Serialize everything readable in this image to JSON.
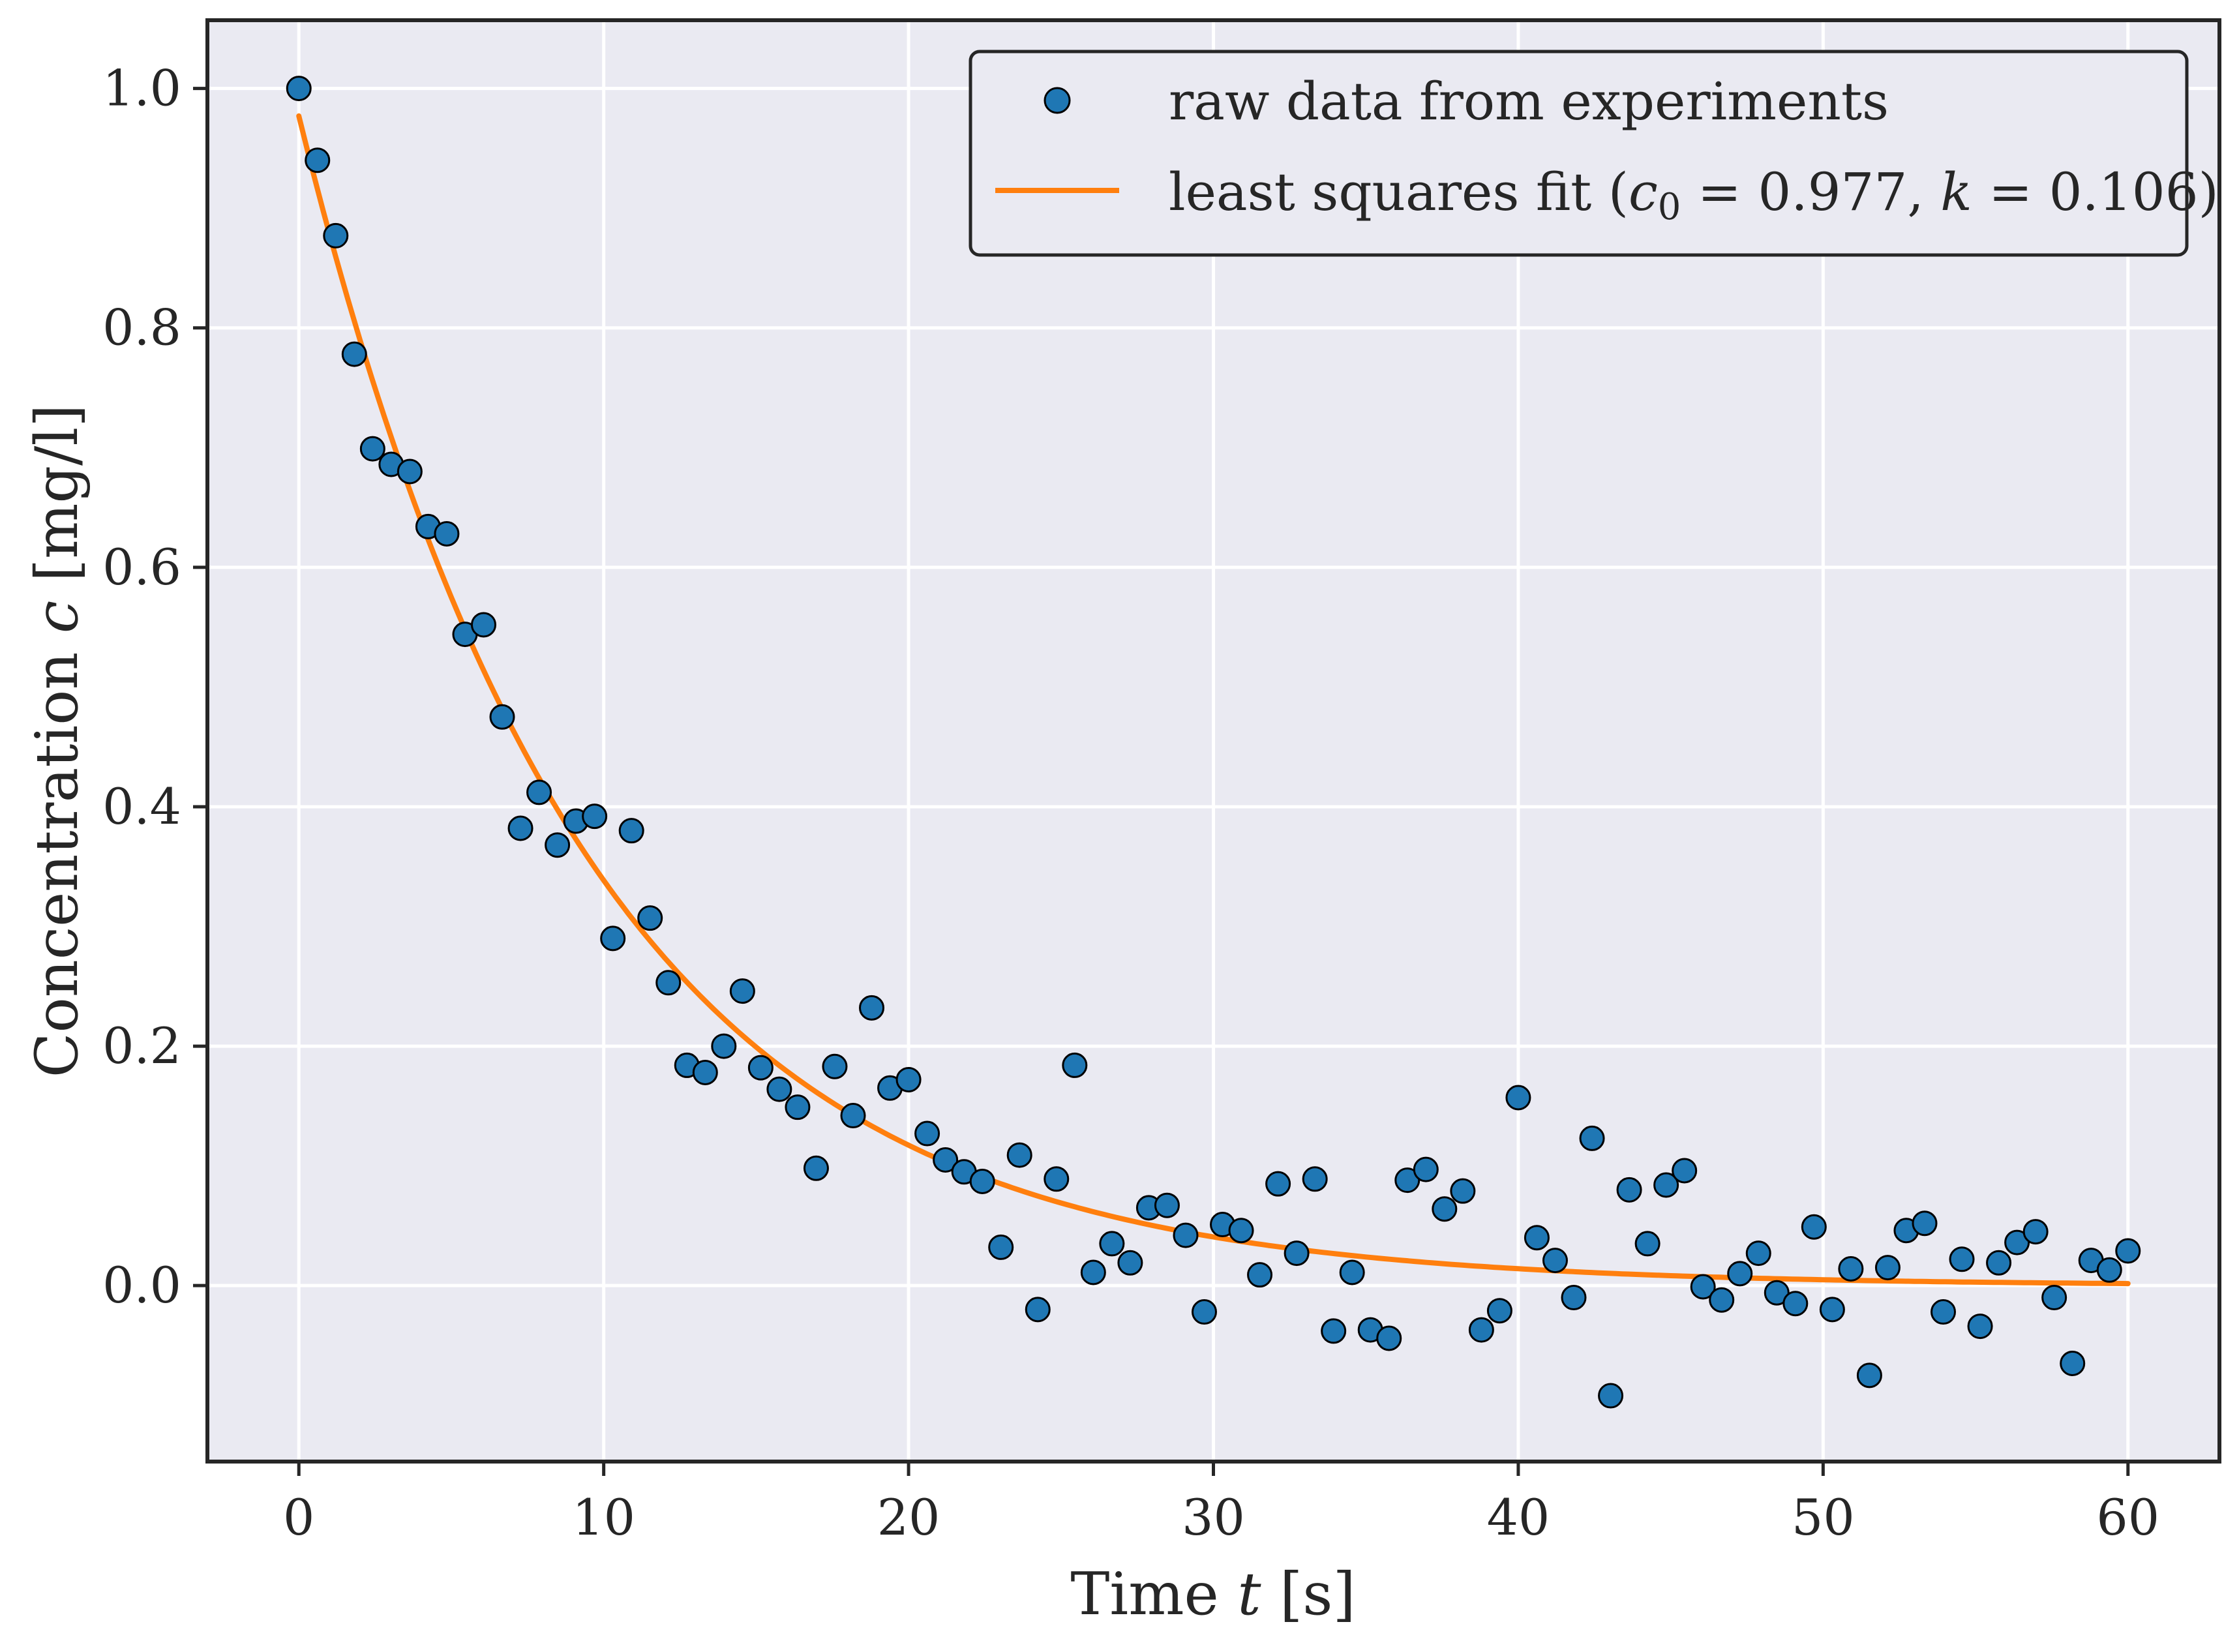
{
  "chart_data": {
    "type": "scatter",
    "xlabel": {
      "prefix": "Time ",
      "var": "t",
      "unit": " [s]"
    },
    "ylabel": {
      "prefix": "Concentration ",
      "var": "c",
      "unit": " [mg/l]"
    },
    "xlim": [
      -3,
      63
    ],
    "ylim": [
      -0.147,
      1.057
    ],
    "xticks": [
      0,
      10,
      20,
      30,
      40,
      50,
      60
    ],
    "yticks": [
      0.0,
      0.2,
      0.4,
      0.6,
      0.8,
      1.0
    ],
    "xtick_labels": [
      "0",
      "10",
      "20",
      "30",
      "40",
      "50",
      "60"
    ],
    "ytick_labels": [
      "0.0",
      "0.2",
      "0.4",
      "0.6",
      "0.8",
      "1.0"
    ],
    "grid": true,
    "legend_position": "top-right",
    "series": [
      {
        "name": "raw data from experiments",
        "kind": "scatter",
        "color": "#1f77b4",
        "x": [
          0.0,
          0.61,
          1.21,
          1.82,
          2.42,
          3.03,
          3.64,
          4.24,
          4.85,
          5.45,
          6.06,
          6.67,
          7.27,
          7.88,
          8.48,
          9.09,
          9.7,
          10.3,
          10.91,
          11.52,
          12.12,
          12.73,
          13.33,
          13.94,
          14.55,
          15.15,
          15.76,
          16.36,
          16.97,
          17.58,
          18.18,
          18.79,
          19.39,
          20.0,
          20.61,
          21.21,
          21.82,
          22.42,
          23.03,
          23.64,
          24.24,
          24.85,
          25.45,
          26.06,
          26.67,
          27.27,
          27.88,
          28.48,
          29.09,
          29.7,
          30.3,
          30.91,
          31.52,
          32.12,
          32.73,
          33.33,
          33.94,
          34.55,
          35.15,
          35.76,
          36.36,
          36.97,
          37.58,
          38.18,
          38.79,
          39.39,
          40.0,
          40.61,
          41.21,
          41.82,
          42.42,
          43.03,
          43.64,
          44.24,
          44.85,
          45.45,
          46.06,
          46.67,
          47.27,
          47.88,
          48.48,
          49.09,
          49.7,
          50.3,
          50.91,
          51.52,
          52.12,
          52.73,
          53.33,
          53.94,
          54.55,
          55.15,
          55.76,
          56.36,
          56.97,
          57.58,
          58.18,
          58.79,
          59.39,
          60.0
        ],
        "y": [
          1.0,
          0.94,
          0.877,
          0.778,
          0.699,
          0.686,
          0.68,
          0.634,
          0.628,
          0.544,
          0.552,
          0.475,
          0.382,
          0.412,
          0.368,
          0.388,
          0.392,
          0.29,
          0.38,
          0.307,
          0.253,
          0.184,
          0.178,
          0.2,
          0.246,
          0.182,
          0.164,
          0.149,
          0.098,
          0.183,
          0.142,
          0.232,
          0.165,
          0.172,
          0.127,
          0.105,
          0.095,
          0.087,
          0.032,
          0.109,
          -0.02,
          0.089,
          0.184,
          0.011,
          0.035,
          0.019,
          0.065,
          0.067,
          0.042,
          -0.022,
          0.051,
          0.046,
          0.009,
          0.085,
          0.027,
          0.089,
          -0.038,
          0.011,
          -0.037,
          -0.044,
          0.088,
          0.097,
          0.064,
          0.079,
          -0.037,
          -0.021,
          0.157,
          0.04,
          0.021,
          -0.01,
          0.123,
          -0.092,
          0.08,
          0.035,
          0.084,
          0.096,
          -0.001,
          -0.012,
          0.01,
          0.027,
          -0.006,
          -0.015,
          0.049,
          -0.02,
          0.014,
          -0.075,
          0.015,
          0.046,
          0.052,
          -0.022,
          0.022,
          -0.034,
          0.019,
          0.036,
          0.045,
          -0.01,
          -0.065,
          0.021,
          0.013,
          0.029
        ]
      },
      {
        "name": "least squares fit",
        "kind": "line",
        "color": "#ff7f0e",
        "model": "c0 * exp(-k * t)",
        "c0": 0.977,
        "k": 0.106,
        "x_range": [
          0,
          60
        ]
      }
    ],
    "legend": {
      "scatter_label": "raw data from experiments",
      "fit_label_prefix": "least squares fit (",
      "fit_c_var": "c",
      "fit_c_sub": "0",
      "fit_c_value": " = 0.977, ",
      "fit_k_var": "k",
      "fit_k_value": " = 0.106)"
    }
  },
  "colors": {
    "plot_background": "#eaeaf2",
    "grid": "#ffffff",
    "axes_edge": "#262626",
    "scatter_fill": "#1f77b4",
    "fit_line": "#ff7f0e"
  }
}
